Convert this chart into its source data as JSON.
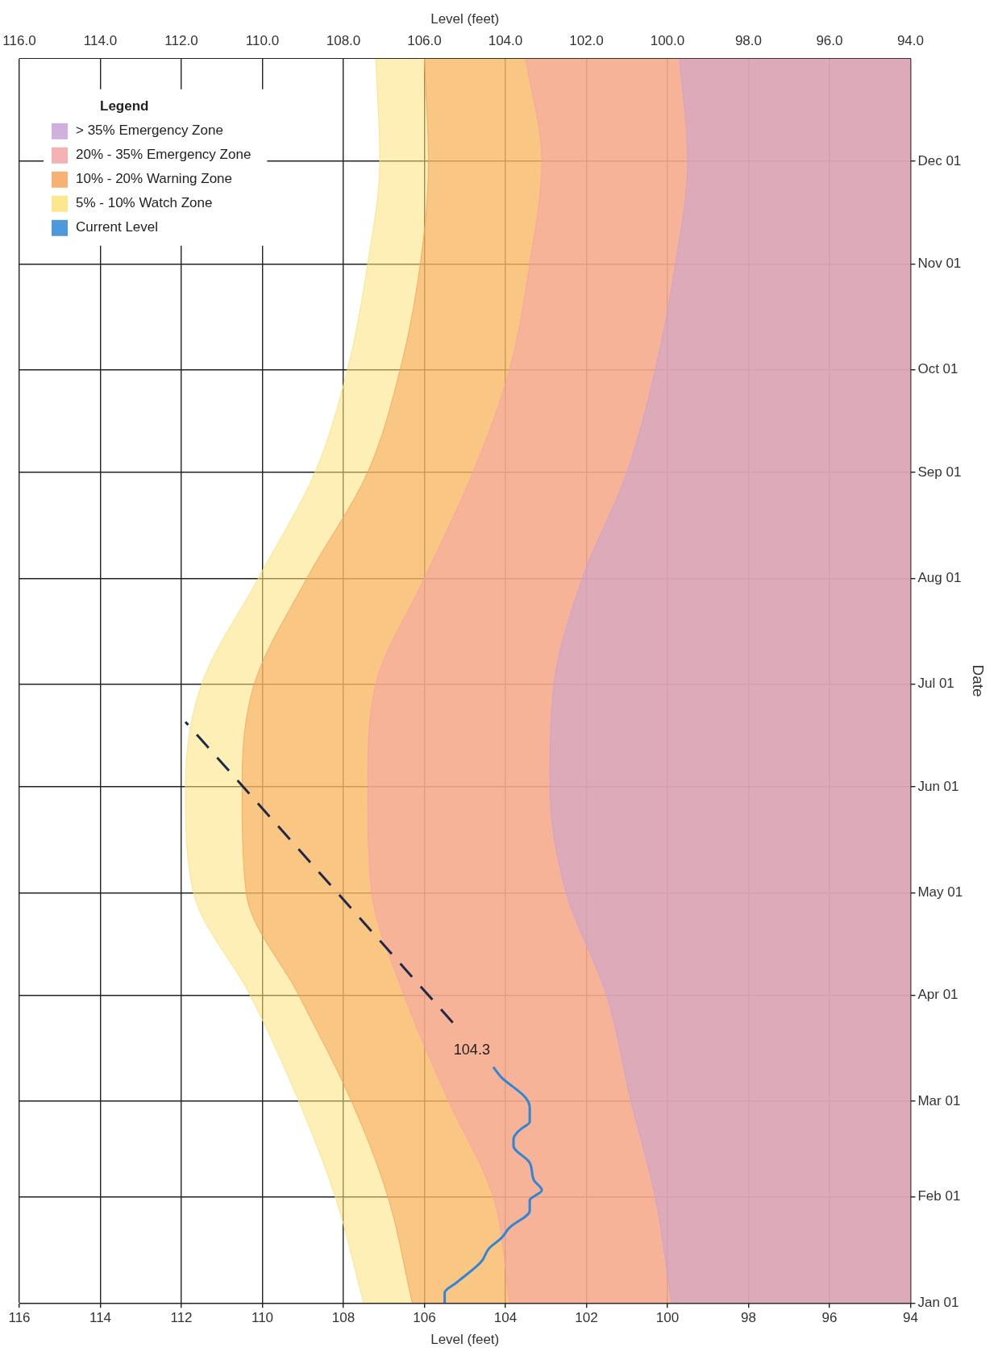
{
  "chart_data": {
    "type": "area",
    "orientation": "horizontal",
    "xlabel": "Level (feet)",
    "x2label": "Level (feet)",
    "ylabel": "Date",
    "legend_title": "Legend",
    "legend": "top left",
    "grid": true,
    "x": [
      "--01-01",
      "--02-01",
      "--03-01",
      "--04-01",
      "--05-01",
      "--06-01",
      "--07-01",
      "--08-01",
      "--09-01",
      "--10-01",
      "--11-01",
      "--12-01",
      "--12-31"
    ],
    "series": [
      {
        "name": "> 35% Emergency Zone",
        "type": "area",
        "color": "#c8a2d6",
        "values": [
          99.9,
          100.3,
          100.9,
          101.5,
          102.5,
          102.9,
          102.8,
          102.1,
          101.0,
          100.3,
          99.8,
          99.5,
          99.7
        ]
      },
      {
        "name": "20% - 35% Emergency Zone",
        "type": "area",
        "color": "#f4a3a8",
        "values": [
          103.9,
          104.3,
          105.4,
          106.5,
          107.3,
          107.4,
          107.2,
          106.0,
          104.8,
          103.9,
          103.4,
          103.1,
          103.5
        ]
      },
      {
        "name": "10% - 20% Warning Zone",
        "type": "area",
        "color": "#f6a55a",
        "values": [
          106.3,
          106.9,
          107.8,
          109.1,
          110.4,
          110.5,
          110.2,
          108.9,
          107.4,
          106.6,
          106.1,
          105.9,
          106.0
        ]
      },
      {
        "name": "5% - 10% Watch Zone",
        "type": "area",
        "color": "#fbe27a",
        "values": [
          107.5,
          108.2,
          109.1,
          110.3,
          111.7,
          111.9,
          111.5,
          110.1,
          108.7,
          107.9,
          107.4,
          107.1,
          107.2
        ]
      },
      {
        "name": "Current Level",
        "type": "line",
        "color": "#2f86d6",
        "x": [
          "--01-01",
          "--01-04",
          "--01-07",
          "--01-13",
          "--01-17",
          "--01-20",
          "--01-23",
          "--01-28",
          "--01-31",
          "--02-03",
          "--02-06",
          "--02-11",
          "--02-16",
          "--02-18",
          "--02-20",
          "--02-21",
          "--02-23",
          "--02-27",
          "--03-02",
          "--03-08",
          "--03-11"
        ],
        "values": [
          105.5,
          105.5,
          105.2,
          104.6,
          104.4,
          104.1,
          103.9,
          103.4,
          103.4,
          103.1,
          103.3,
          103.4,
          103.8,
          103.8,
          103.7,
          103.6,
          103.4,
          103.4,
          103.5,
          104.1,
          104.3
        ]
      },
      {
        "type": "line",
        "color": "#1f2a4a",
        "line_style": "dashed",
        "x": [
          "--03-24",
          "--06-20"
        ],
        "values": [
          105.3,
          111.9
        ]
      }
    ],
    "annotations": [
      {
        "text": "104.3",
        "x": 104.3,
        "y": "--03-11"
      }
    ],
    "ylim": [
      "--01-01",
      "--12-31"
    ],
    "yticks": [
      {
        "value": "--01-01",
        "label": "Jan 01"
      },
      {
        "value": "--02-01",
        "label": "Feb 01"
      },
      {
        "value": "--03-01",
        "label": "Mar 01"
      },
      {
        "value": "--04-01",
        "label": "Apr 01"
      },
      {
        "value": "--05-01",
        "label": "May 01"
      },
      {
        "value": "--06-01",
        "label": "Jun 01"
      },
      {
        "value": "--07-01",
        "label": "Jul 01"
      },
      {
        "value": "--08-01",
        "label": "Aug 01"
      },
      {
        "value": "--09-01",
        "label": "Sep 01"
      },
      {
        "value": "--10-01",
        "label": "Oct 01"
      },
      {
        "value": "--11-01",
        "label": "Nov 01"
      },
      {
        "value": "--12-01",
        "label": "Dec 01"
      }
    ],
    "xlim": [
      116,
      94
    ],
    "xticks": [
      116,
      114,
      112,
      110,
      108,
      106,
      104,
      102,
      100,
      98,
      96,
      94
    ],
    "x2lim": [
      116,
      94
    ],
    "x2ticks": [
      {
        "value": 116,
        "label": "116.0"
      },
      {
        "value": 114,
        "label": "114.0"
      },
      {
        "value": 112,
        "label": "112.0"
      },
      {
        "value": 110,
        "label": "110.0"
      },
      {
        "value": 108,
        "label": "108.0"
      },
      {
        "value": 106,
        "label": "106.0"
      },
      {
        "value": 104,
        "label": "104.0"
      },
      {
        "value": 102,
        "label": "102.0"
      },
      {
        "value": 100,
        "label": "100.0"
      },
      {
        "value": 98,
        "label": "98.0"
      },
      {
        "value": 96,
        "label": "96.0"
      },
      {
        "value": 94,
        "label": "94.0"
      }
    ]
  }
}
